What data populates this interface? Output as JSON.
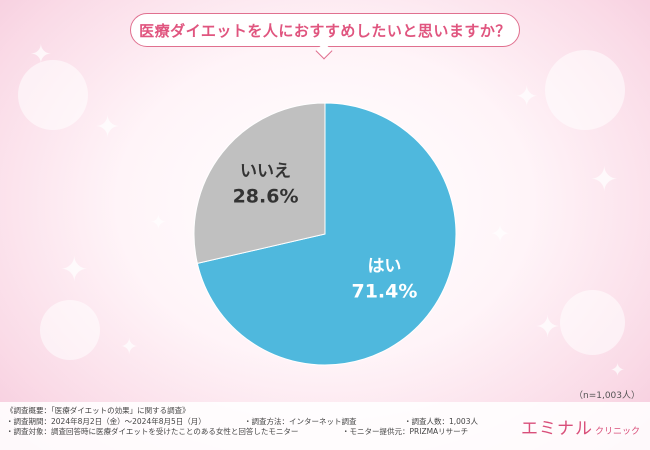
{
  "question": "医療ダイエットを人におすすめしたいと思いますか？",
  "chart_data": {
    "type": "pie",
    "categories": [
      "はい",
      "いいえ"
    ],
    "values": [
      71.4,
      28.6
    ],
    "value_labels": [
      "71.4%",
      "28.6%"
    ],
    "colors": [
      "#4fb8dd",
      "#c0c0c0"
    ],
    "start_angle": "12 o'clock, clockwise"
  },
  "sample_size": "（n=1,003人）",
  "survey": {
    "title": "《調査概要：「医療ダイエットの効果」に関する調査》",
    "period": "・調査期間：2024年8月2日（金）～2024年8月5日（月）",
    "method": "・調査方法：インターネット調査",
    "count": "・調査人数：1,003人",
    "target": "・調査対象：調査回答時に医療ダイエットを受けたことのある女性と回答したモニター",
    "provider": "・モニター提供元：PRIZMAリサーチ"
  },
  "logo": {
    "main": "エミナル",
    "sub": "クリニック"
  },
  "colors": {
    "accent": "#e0557f",
    "logo": "#d94f7a"
  }
}
